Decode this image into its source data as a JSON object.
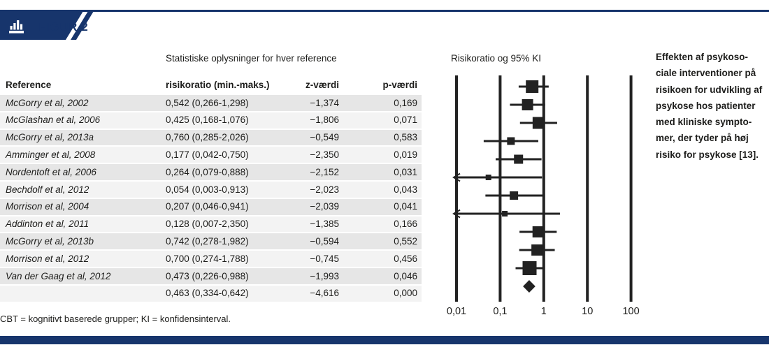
{
  "colors": {
    "navy": "#17356c",
    "ink": "#1d1d1b",
    "plot": "#222222",
    "row_dark": "#e6e6e6",
    "row_light": "#f3f3f3"
  },
  "header": {
    "title": "FIGUR 2",
    "icon": "bar-chart-icon"
  },
  "table": {
    "section_header": "Statistiske oplysninger for hver reference",
    "columns": {
      "reference": "Reference",
      "risk": "risikoratio (min.-maks.)",
      "z": "z-værdi",
      "p": "p-værdi"
    },
    "rows": [
      {
        "reference": "McGorry et al, 2002",
        "risk": "0,542 (0,266-1,298)",
        "z": "−1,374",
        "p": "0,169"
      },
      {
        "reference": "McGlashan et al, 2006",
        "risk": "0,425 (0,168-1,076)",
        "z": "−1,806",
        "p": "0,071"
      },
      {
        "reference": "McGorry et al, 2013a",
        "risk": "0,760 (0,285-2,026)",
        "z": "−0,549",
        "p": "0,583"
      },
      {
        "reference": "Amminger et al, 2008",
        "risk": "0,177 (0,042-0,750)",
        "z": "−2,350",
        "p": "0,019"
      },
      {
        "reference": "Nordentoft et al, 2006",
        "risk": "0,264 (0,079-0,888)",
        "z": "−2,152",
        "p": "0,031"
      },
      {
        "reference": "Bechdolf et al, 2012",
        "risk": "0,054 (0,003-0,913)",
        "z": "−2,023",
        "p": "0,043"
      },
      {
        "reference": "Morrison et al, 2004",
        "risk": "0,207 (0,046-0,941)",
        "z": "−2,039",
        "p": "0,041"
      },
      {
        "reference": "Addinton et al, 2011",
        "risk": "0,128 (0,007-2,350)",
        "z": "−1,385",
        "p": "0,166"
      },
      {
        "reference": "McGorry et al, 2013b",
        "risk": "0,742 (0,278-1,982)",
        "z": "−0,594",
        "p": "0,552"
      },
      {
        "reference": "Morrison et al, 2012",
        "risk": "0,700 (0,274-1,788)",
        "z": "−0,745",
        "p": "0,456"
      },
      {
        "reference": "Van der Gaag et al, 2012",
        "risk": "0,473 (0,226-0,988)",
        "z": "−1,993",
        "p": "0,046"
      },
      {
        "reference": "",
        "risk": "0,463 (0,334-0,642)",
        "z": "−4,616",
        "p": "0,000"
      }
    ]
  },
  "chart_data": {
    "type": "forest",
    "title": "Risikoratio og 95% KI",
    "x_scale": "log10",
    "xlim": [
      0.01,
      100
    ],
    "axis_values": [
      0.01,
      0.1,
      1,
      10,
      100
    ],
    "axis_ticks": [
      "0,01",
      "0,1",
      "1",
      "10",
      "100"
    ],
    "studies": [
      {
        "label": "McGorry et al, 2002",
        "rr": 0.542,
        "lo": 0.266,
        "hi": 1.298,
        "size": 18
      },
      {
        "label": "McGlashan et al, 2006",
        "rr": 0.425,
        "lo": 0.168,
        "hi": 1.076,
        "size": 16
      },
      {
        "label": "McGorry et al, 2013a",
        "rr": 0.76,
        "lo": 0.285,
        "hi": 2.026,
        "size": 17
      },
      {
        "label": "Amminger et al, 2008",
        "rr": 0.177,
        "lo": 0.042,
        "hi": 0.75,
        "size": 11
      },
      {
        "label": "Nordentoft et al, 2006",
        "rr": 0.264,
        "lo": 0.079,
        "hi": 0.888,
        "size": 13
      },
      {
        "label": "Bechdolf et al, 2012",
        "rr": 0.054,
        "lo": 0.003,
        "hi": 0.913,
        "size": 8
      },
      {
        "label": "Morrison et al, 2004",
        "rr": 0.207,
        "lo": 0.046,
        "hi": 0.941,
        "size": 12
      },
      {
        "label": "Addinton et al, 2011",
        "rr": 0.128,
        "lo": 0.007,
        "hi": 2.35,
        "size": 8
      },
      {
        "label": "McGorry et al, 2013b",
        "rr": 0.742,
        "lo": 0.278,
        "hi": 1.982,
        "size": 16
      },
      {
        "label": "Morrison et al, 2012",
        "rr": 0.7,
        "lo": 0.274,
        "hi": 1.788,
        "size": 16
      },
      {
        "label": "Van der Gaag et al, 2012",
        "rr": 0.473,
        "lo": 0.226,
        "hi": 0.988,
        "size": 20
      }
    ],
    "summary": {
      "rr": 0.463,
      "lo": 0.334,
      "hi": 0.642
    }
  },
  "caption": {
    "lines": [
      "Effekten af psykoso-",
      "ciale interventioner på",
      "risikoen for udvikling af",
      "psykose hos patienter",
      "med kliniske sympto-",
      "mer, der tyder på høj",
      "risiko for psykose [13]."
    ]
  },
  "footnote": "CBT = kognitivt baserede grupper; KI = konfidensinterval."
}
